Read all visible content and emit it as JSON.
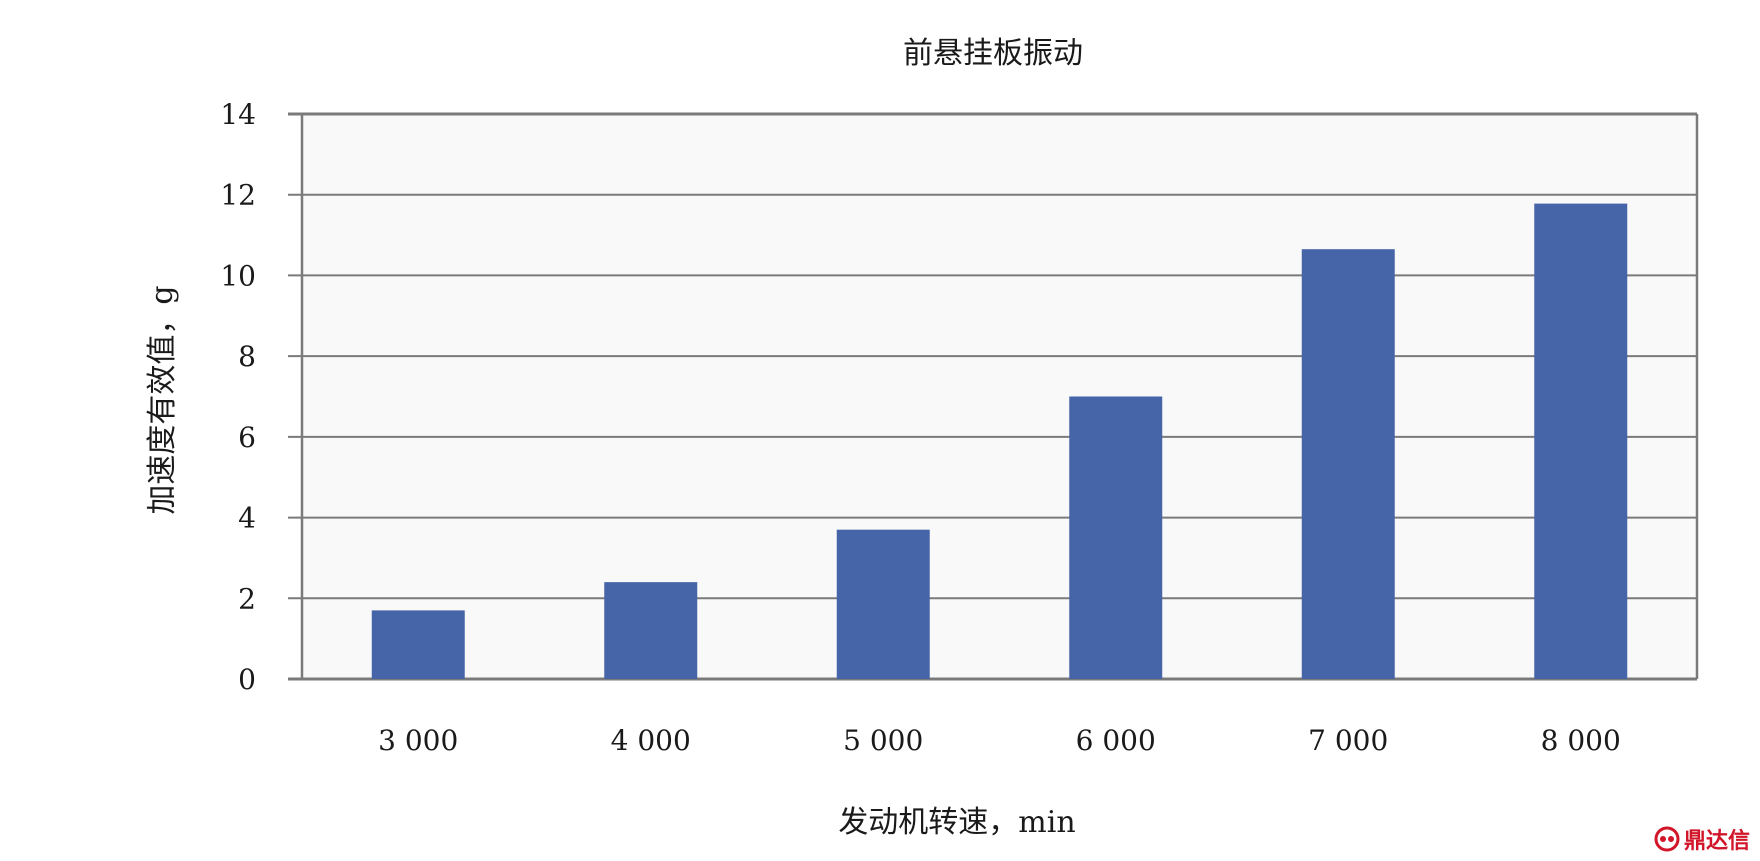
{
  "chart_data": {
    "type": "bar",
    "title": "前悬挂板振动",
    "xlabel": "发动机转速，min",
    "ylabel": "加速度有效值，g",
    "categories": [
      "3 000",
      "4 000",
      "5 000",
      "6 000",
      "7 000",
      "8 000"
    ],
    "values": [
      1.7,
      2.4,
      3.7,
      7.0,
      10.65,
      11.78
    ],
    "yticks": [
      "0",
      "2",
      "4",
      "6",
      "8",
      "10",
      "12",
      "14"
    ],
    "ylim": [
      0,
      14
    ],
    "grid": true,
    "legend": "none",
    "bar_color": "#4565a8",
    "plot_background": "#f9f9fa"
  },
  "watermark": {
    "text": "鼎达信",
    "color": "#d2162a"
  }
}
